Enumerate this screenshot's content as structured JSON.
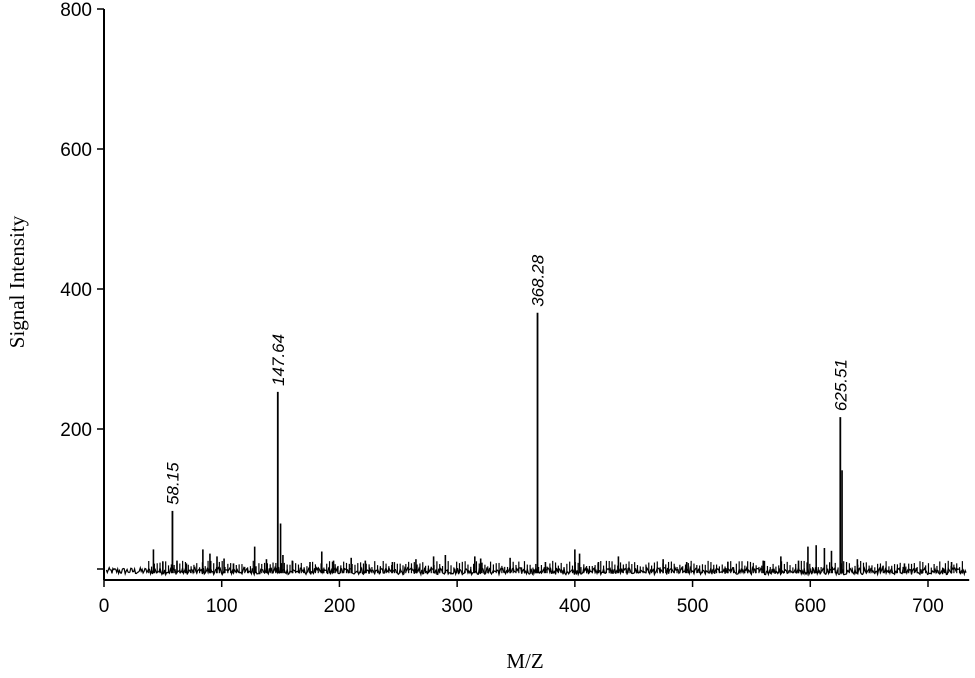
{
  "chart_data": {
    "type": "line",
    "title": "",
    "xlabel": "M/Z",
    "ylabel": "Signal Intensity",
    "xlim": [
      0,
      735
    ],
    "ylim": [
      -15,
      800
    ],
    "x_ticks": [
      0,
      100,
      200,
      300,
      400,
      500,
      600,
      700
    ],
    "y_ticks": [
      200,
      400,
      600,
      800
    ],
    "grid": false,
    "legend": "none",
    "line_color": "#000000",
    "peaks": [
      {
        "x": 58.15,
        "y": 83,
        "label": "58.15"
      },
      {
        "x": 147.64,
        "y": 253,
        "label": "147.64"
      },
      {
        "x": 368.28,
        "y": 366,
        "label": "368.28"
      },
      {
        "x": 625.51,
        "y": 217,
        "label": "625.51"
      }
    ],
    "minor_peaks": [
      {
        "x": 42,
        "y": 28
      },
      {
        "x": 50,
        "y": 10
      },
      {
        "x": 62,
        "y": 12
      },
      {
        "x": 70,
        "y": 8
      },
      {
        "x": 84,
        "y": 28
      },
      {
        "x": 90,
        "y": 22
      },
      {
        "x": 96,
        "y": 18
      },
      {
        "x": 102,
        "y": 15
      },
      {
        "x": 110,
        "y": 8
      },
      {
        "x": 128,
        "y": 32
      },
      {
        "x": 138,
        "y": 14
      },
      {
        "x": 150,
        "y": 65
      },
      {
        "x": 152,
        "y": 20
      },
      {
        "x": 160,
        "y": 12
      },
      {
        "x": 175,
        "y": 10
      },
      {
        "x": 185,
        "y": 25
      },
      {
        "x": 195,
        "y": 12
      },
      {
        "x": 210,
        "y": 16
      },
      {
        "x": 222,
        "y": 12
      },
      {
        "x": 245,
        "y": 10
      },
      {
        "x": 265,
        "y": 14
      },
      {
        "x": 280,
        "y": 18
      },
      {
        "x": 290,
        "y": 20
      },
      {
        "x": 315,
        "y": 18
      },
      {
        "x": 320,
        "y": 15
      },
      {
        "x": 345,
        "y": 16
      },
      {
        "x": 375,
        "y": 10
      },
      {
        "x": 400,
        "y": 28
      },
      {
        "x": 404,
        "y": 22
      },
      {
        "x": 420,
        "y": 10
      },
      {
        "x": 437,
        "y": 18
      },
      {
        "x": 475,
        "y": 14
      },
      {
        "x": 495,
        "y": 10
      },
      {
        "x": 530,
        "y": 10
      },
      {
        "x": 560,
        "y": 12
      },
      {
        "x": 575,
        "y": 18
      },
      {
        "x": 590,
        "y": 12
      },
      {
        "x": 598,
        "y": 32
      },
      {
        "x": 605,
        "y": 34
      },
      {
        "x": 612,
        "y": 30
      },
      {
        "x": 618,
        "y": 26
      },
      {
        "x": 627,
        "y": 141
      },
      {
        "x": 640,
        "y": 14
      },
      {
        "x": 680,
        "y": 8
      },
      {
        "x": 720,
        "y": 10
      }
    ]
  }
}
